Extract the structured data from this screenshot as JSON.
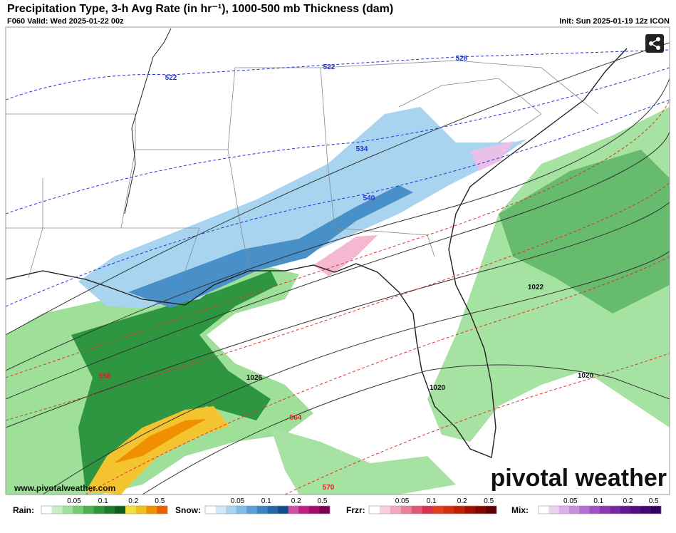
{
  "header": {
    "title": "Precipitation Type, 3-h Avg Rate (in hr⁻¹), 1000-500 mb Thickness (dam)",
    "valid": "F060 Valid: Wed 2025-01-22 00z",
    "init": "Init: Sun 2025-01-19 12z ICON"
  },
  "map": {
    "thickness_labels": [
      "522",
      "522",
      "528",
      "534",
      "540",
      "558",
      "564",
      "570"
    ],
    "pressure_labels": [
      "1026",
      "1022",
      "1020",
      "1020"
    ],
    "watermark": "www.pivotalweather.com",
    "logo": "pivotal weather"
  },
  "legend": [
    {
      "label": "Rain:",
      "ticks": [
        "0.05",
        "0.1",
        "0.2",
        "0.5"
      ],
      "colors": [
        "#ffffff",
        "#c8f0c8",
        "#a0e0a0",
        "#78cc78",
        "#50b050",
        "#30963c",
        "#1c7a2c",
        "#0e5e1e",
        "#f0e040",
        "#f4c020",
        "#f09000",
        "#e86000"
      ]
    },
    {
      "label": "Snow:",
      "ticks": [
        "0.05",
        "0.1",
        "0.2",
        "0.5"
      ],
      "colors": [
        "#ffffff",
        "#d0e8f8",
        "#a8d4f0",
        "#80bce8",
        "#5aa0d8",
        "#3c84c4",
        "#2468a8",
        "#124c8c",
        "#d050a0",
        "#c02080",
        "#a0106a",
        "#800050"
      ]
    },
    {
      "label": "Frzr:",
      "ticks": [
        "0.05",
        "0.1",
        "0.2",
        "0.5"
      ],
      "colors": [
        "#ffffff",
        "#f8d0dc",
        "#f0a8bc",
        "#e88098",
        "#e05878",
        "#d83050",
        "#e04020",
        "#d03010",
        "#c02000",
        "#a01000",
        "#800800",
        "#600000"
      ]
    },
    {
      "label": "Mix:",
      "ticks": [
        "0.05",
        "0.1",
        "0.2",
        "0.5"
      ],
      "colors": [
        "#ffffff",
        "#ecd0f0",
        "#dcb0e8",
        "#c890dc",
        "#b470d0",
        "#a050c0",
        "#8c38b0",
        "#7828a0",
        "#641890",
        "#501080",
        "#400870",
        "#300060"
      ]
    }
  ]
}
